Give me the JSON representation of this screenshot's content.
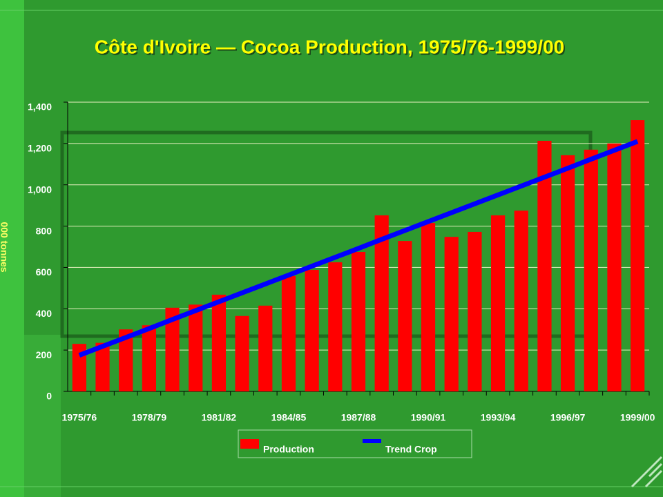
{
  "chart_data": {
    "type": "bar",
    "title": "Côte d'Ivoire — Cocoa Production, 1975/76-1999/00",
    "y_label": "000 tonnes",
    "categories": [
      "1975/76",
      null,
      null,
      "1978/79",
      null,
      null,
      "1981/82",
      null,
      null,
      "1984/85",
      null,
      null,
      "1987/88",
      null,
      null,
      "1990/91",
      null,
      null,
      "1993/94",
      null,
      null,
      "1996/97",
      null,
      null,
      "1999/00"
    ],
    "series": [
      {
        "name": "Production",
        "type": "bar",
        "color": "#ff0000",
        "values": [
          230,
          235,
          300,
          320,
          405,
          420,
          468,
          365,
          415,
          558,
          588,
          625,
          675,
          852,
          728,
          815,
          748,
          772,
          852,
          875,
          1213,
          1143,
          1170,
          1200,
          1313
        ]
      },
      {
        "name": "Trend Crop",
        "type": "line",
        "color": "#0000ff",
        "values": [
          175,
          218,
          261,
          304,
          348,
          391,
          434,
          477,
          520,
          563,
          606,
          649,
          692,
          736,
          779,
          822,
          865,
          908,
          951,
          994,
          1037,
          1080,
          1124,
          1167,
          1210
        ]
      }
    ],
    "ylim": [
      0,
      1400
    ],
    "yticks": [
      0,
      200,
      400,
      600,
      800,
      {
        "value": 1000,
        "label": "1,000"
      },
      {
        "value": 1200,
        "label": "1,200"
      },
      {
        "value": 1400,
        "label": "1,400"
      }
    ],
    "grid": true
  }
}
